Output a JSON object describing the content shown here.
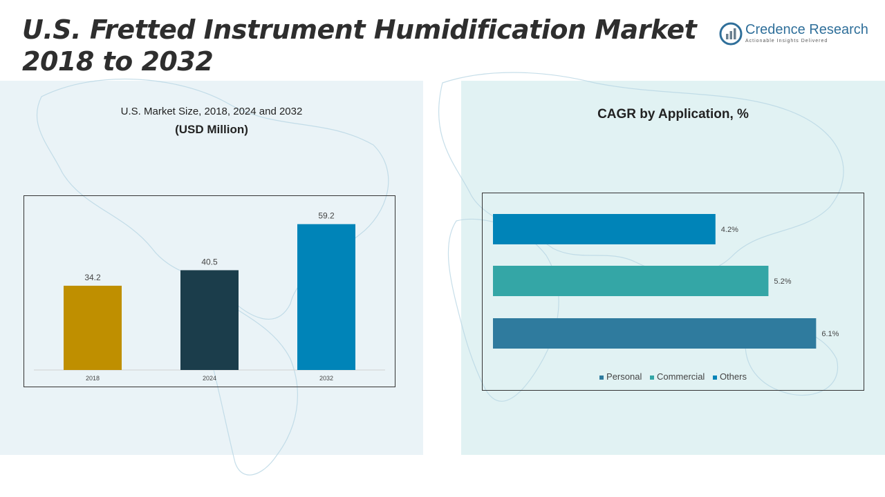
{
  "header": {
    "title_line1": "U.S. Fretted Instrument Humidification Market",
    "title_line2": "2018 to 2032"
  },
  "logo": {
    "name": "Credence Research",
    "tagline": "Actionable Insights Delivered",
    "icon": "bar-growth-icon"
  },
  "left_chart": {
    "subtitle": "U.S. Market Size, 2018, 2024 and 2032",
    "unit": "(USD Million)"
  },
  "right_chart": {
    "title": "CAGR by Application, %"
  },
  "colors": {
    "bar_2018": "#bf8f00",
    "bar_2024": "#1b3d4b",
    "bar_2032": "#0084b8",
    "personal": "#0084b8",
    "commercial": "#34a6a6",
    "others": "#2f7b9e"
  },
  "chart_data": [
    {
      "type": "bar",
      "categories": [
        "2018",
        "2024",
        "2032"
      ],
      "values": [
        34.2,
        40.5,
        59.2
      ],
      "value_labels": [
        "34.2",
        "40.5",
        "59.2"
      ],
      "title": "U.S. Market Size, 2018, 2024 and 2032",
      "ylabel": "",
      "ylim": [
        0,
        65
      ],
      "grid": false
    },
    {
      "type": "bar",
      "orientation": "horizontal",
      "categories": [
        "Personal",
        "Commercial",
        "Others"
      ],
      "values": [
        4.2,
        5.2,
        6.1
      ],
      "value_labels": [
        "4.2%",
        "5.2%",
        "6.1%"
      ],
      "title": "CAGR by Application, %",
      "xlim": [
        0,
        6.8
      ],
      "legend": [
        "Personal",
        "Commercial",
        "Others"
      ],
      "legend_position": "bottom",
      "grid": false
    }
  ]
}
